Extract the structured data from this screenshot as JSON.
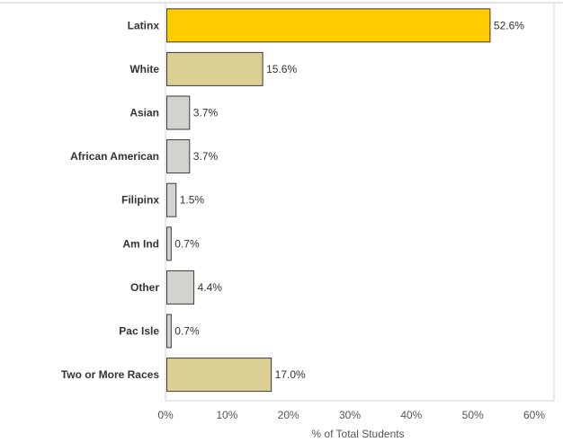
{
  "chart_data": {
    "type": "bar",
    "orientation": "horizontal",
    "categories": [
      "Latinx",
      "White",
      "Asian",
      "African American",
      "Filipinx",
      "Am Ind",
      "Other",
      "Pac Isle",
      "Two or More Races"
    ],
    "values": [
      52.6,
      15.6,
      3.7,
      3.7,
      1.5,
      0.7,
      4.4,
      0.7,
      17.0
    ],
    "data_labels": [
      "52.6%",
      "15.6%",
      "3.7%",
      "3.7%",
      "1.5%",
      "0.7%",
      "4.4%",
      "0.7%",
      "17.0%"
    ],
    "bar_colors": [
      "#ffcc00",
      "#dccf94",
      "#d3d3cd",
      "#d3d3cd",
      "#d3d3cd",
      "#d3d3cd",
      "#d3d3cd",
      "#d3d3cd",
      "#dccf94"
    ],
    "xlabel": "% of Total Students",
    "xlim": [
      0,
      60
    ],
    "xticks": [
      0,
      10,
      20,
      30,
      40,
      50,
      60
    ],
    "xtick_labels": [
      "0%",
      "10%",
      "20%",
      "30%",
      "40%",
      "50%",
      "60%"
    ],
    "grid": false
  }
}
